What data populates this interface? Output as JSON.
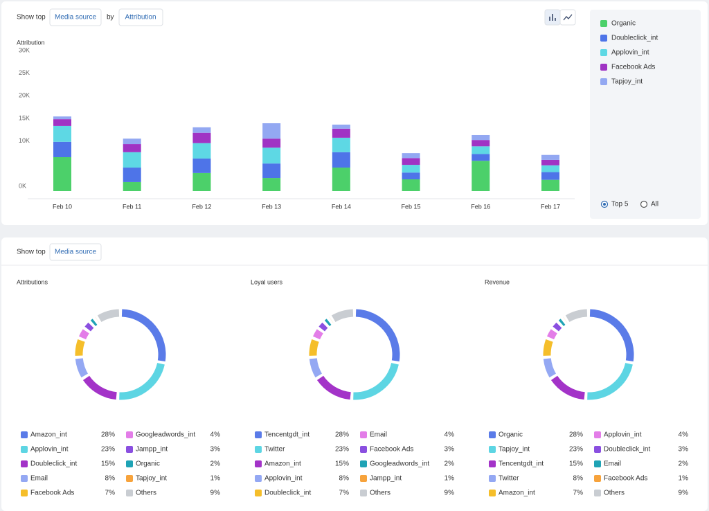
{
  "toolbar": {
    "show_top": "Show top",
    "group": "Media source",
    "by": "by",
    "metric": "Attribution"
  },
  "legend_options": [
    "Top 5",
    "All"
  ],
  "bottom_toolbar": {
    "show_top": "Show top",
    "group": "Media source"
  },
  "chart_data": [
    {
      "type": "bar",
      "stacked": true,
      "y_label": "Attribution",
      "categories": [
        "Feb 10",
        "Feb 11",
        "Feb 12",
        "Feb 13",
        "Feb 14",
        "Feb 15",
        "Feb 16",
        "Feb 17"
      ],
      "series": [
        {
          "name": "Organic",
          "color": "#4cd06a",
          "values": [
            7500,
            2000,
            4000,
            2900,
            5200,
            2600,
            6700,
            2500
          ]
        },
        {
          "name": "Doubleclick_int",
          "color": "#4e74e8",
          "values": [
            3400,
            3200,
            3200,
            3200,
            3400,
            1500,
            1500,
            1700
          ]
        },
        {
          "name": "Applovin_int",
          "color": "#5ed8e4",
          "values": [
            3500,
            3400,
            3400,
            3500,
            3200,
            1700,
            1700,
            1500
          ]
        },
        {
          "name": "Facebook Ads",
          "color": "#a033c4",
          "values": [
            1500,
            1800,
            2300,
            2000,
            2000,
            1500,
            1400,
            1200
          ]
        },
        {
          "name": "Tapjoy_int",
          "color": "#93a8f2",
          "values": [
            600,
            1200,
            1200,
            3400,
            900,
            1100,
            1100,
            1100
          ]
        }
      ],
      "ylim": [
        0,
        30000
      ],
      "yticks": [
        {
          "value": 0,
          "label": "0K"
        },
        {
          "value": 10000,
          "label": "10K"
        },
        {
          "value": 15000,
          "label": "15K"
        },
        {
          "value": 20000,
          "label": "20K"
        },
        {
          "value": 25000,
          "label": "25K"
        },
        {
          "value": 30000,
          "label": "30K"
        }
      ],
      "grid": false
    },
    {
      "type": "donut",
      "title": "Attributions",
      "categories": [
        "Amazon_int",
        "Applovin_int",
        "Doubleclick_int",
        "Email",
        "Facebook Ads",
        "Googleadwords_int",
        "Jampp_int",
        "Organic",
        "Tapjoy_int",
        "Others"
      ],
      "values": [
        28,
        23,
        15,
        8,
        7,
        4,
        3,
        2,
        1,
        9
      ],
      "value_labels": [
        "28%",
        "23%",
        "15%",
        "8%",
        "7%",
        "4%",
        "3%",
        "2%",
        "1%",
        "9%"
      ],
      "colors": [
        "#5a7be8",
        "#5dd5e3",
        "#a333c8",
        "#94a8f3",
        "#f5be2a",
        "#e37de8",
        "#8a4fe0",
        "#1fa3b5",
        "#f7a33c",
        "#c9cdd2"
      ]
    },
    {
      "type": "donut",
      "title": "Loyal users",
      "categories": [
        "Tencentgdt_int",
        "Twitter",
        "Amazon_int",
        "Applovin_int",
        "Doubleclick_int",
        "Email",
        "Facebook Ads",
        "Googleadwords_int",
        "Jampp_int",
        "Others"
      ],
      "values": [
        28,
        23,
        15,
        8,
        7,
        4,
        3,
        2,
        1,
        9
      ],
      "value_labels": [
        "28%",
        "23%",
        "15%",
        "8%",
        "7%",
        "4%",
        "3%",
        "2%",
        "1%",
        "9%"
      ],
      "colors": [
        "#5a7be8",
        "#5dd5e3",
        "#a333c8",
        "#94a8f3",
        "#f5be2a",
        "#e37de8",
        "#8a4fe0",
        "#1fa3b5",
        "#f7a33c",
        "#c9cdd2"
      ]
    },
    {
      "type": "donut",
      "title": "Revenue",
      "categories": [
        "Organic",
        "Tapjoy_int",
        "Tencentgdt_int",
        "Twitter",
        "Amazon_int",
        "Applovin_int",
        "Doubleclick_int",
        "Email",
        "Facebook Ads",
        "Others"
      ],
      "values": [
        28,
        23,
        15,
        8,
        7,
        4,
        3,
        2,
        1,
        9
      ],
      "value_labels": [
        "28%",
        "23%",
        "15%",
        "8%",
        "7%",
        "4%",
        "3%",
        "2%",
        "1%",
        "9%"
      ],
      "colors": [
        "#5a7be8",
        "#5dd5e3",
        "#a333c8",
        "#94a8f3",
        "#f5be2a",
        "#e37de8",
        "#8a4fe0",
        "#1fa3b5",
        "#f7a33c",
        "#c9cdd2"
      ]
    }
  ]
}
